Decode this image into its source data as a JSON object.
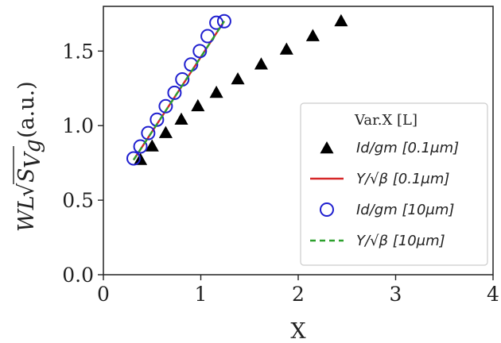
{
  "chart_data": {
    "type": "scatter",
    "xlabel": "X",
    "ylabel_prefix": "WL",
    "ylabel_unit": "(a.u.)",
    "xlim": [
      0,
      4
    ],
    "ylim": [
      0.0,
      1.8
    ],
    "xticks": [
      "0",
      "1",
      "2",
      "3",
      "4"
    ],
    "xtick_values": [
      0,
      1,
      2,
      3,
      4
    ],
    "yticks": [
      "0.0",
      "0.5",
      "1.0",
      "1.5"
    ],
    "ytick_values": [
      0.0,
      0.5,
      1.0,
      1.5
    ],
    "grid": false,
    "legend_title": "Var.X [L]",
    "legend_position": "lower-right",
    "series": [
      {
        "name": "Id/gm [0.1μm]",
        "marker": "triangle",
        "color": "#000000",
        "x": [
          0.38,
          0.5,
          0.64,
          0.8,
          0.97,
          1.16,
          1.38,
          1.62,
          1.88,
          2.15,
          2.44
        ],
        "y": [
          0.77,
          0.86,
          0.95,
          1.04,
          1.13,
          1.22,
          1.31,
          1.41,
          1.51,
          1.6,
          1.7
        ]
      },
      {
        "name": "Y/√β [0.1μm]",
        "marker": "line",
        "color": "#d62728",
        "x": [
          0.31,
          1.24
        ],
        "y": [
          0.77,
          1.7
        ]
      },
      {
        "name": "Id/gm [10μm]",
        "marker": "circle",
        "color": "#1f1fcf",
        "x": [
          0.31,
          0.38,
          0.46,
          0.55,
          0.64,
          0.73,
          0.81,
          0.9,
          0.99,
          1.07,
          1.16,
          1.24
        ],
        "y": [
          0.78,
          0.86,
          0.95,
          1.04,
          1.13,
          1.22,
          1.31,
          1.41,
          1.5,
          1.6,
          1.69,
          1.7
        ]
      },
      {
        "name": "Y/√β [10μm]",
        "marker": "dashed",
        "color": "#2ca02c",
        "x": [
          0.31,
          1.24
        ],
        "y": [
          0.77,
          1.7
        ]
      }
    ]
  }
}
